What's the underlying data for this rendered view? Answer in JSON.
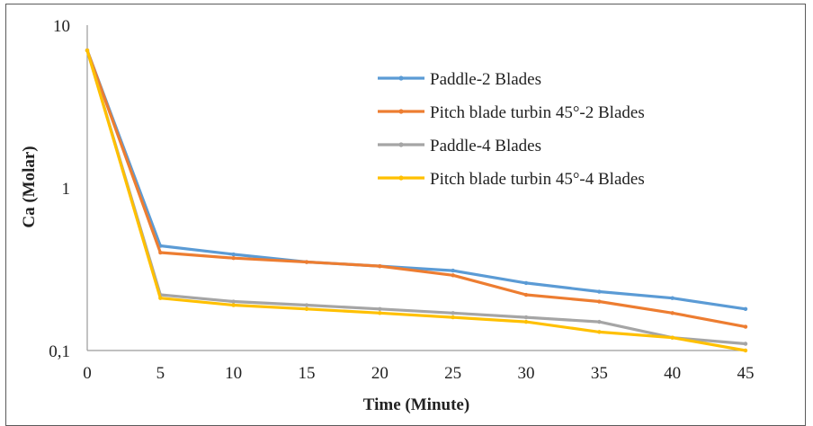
{
  "chart_data": {
    "type": "line",
    "title": "",
    "xlabel": "Time (Minute)",
    "ylabel": "Ca (Molar)",
    "x": [
      0,
      5,
      10,
      15,
      20,
      25,
      30,
      35,
      40,
      45
    ],
    "xlim": [
      0,
      45
    ],
    "ylim": [
      0.1,
      10
    ],
    "yscale": "log",
    "ytick_labels": [
      "10",
      "1",
      "0,1"
    ],
    "ytick_values": [
      10,
      1,
      0.1
    ],
    "xtick_labels": [
      "0",
      "5",
      "10",
      "15",
      "20",
      "25",
      "30",
      "35",
      "40",
      "45"
    ],
    "grid": false,
    "legend_position": "top-right",
    "series": [
      {
        "name": "Paddle-2 Blades",
        "color": "#5b9bd5",
        "values": [
          7.0,
          0.44,
          0.39,
          0.35,
          0.33,
          0.31,
          0.26,
          0.23,
          0.21,
          0.18
        ]
      },
      {
        "name": "Pitch blade turbin 45°-2 Blades",
        "color": "#ed7d31",
        "values": [
          7.0,
          0.4,
          0.37,
          0.35,
          0.33,
          0.29,
          0.22,
          0.2,
          0.17,
          0.14
        ]
      },
      {
        "name": "Paddle-4 Blades",
        "color": "#a5a5a5",
        "values": [
          7.0,
          0.22,
          0.2,
          0.19,
          0.18,
          0.17,
          0.16,
          0.15,
          0.12,
          0.11
        ]
      },
      {
        "name": "Pitch blade turbin 45°-4 Blades",
        "color": "#ffc000",
        "values": [
          7.0,
          0.21,
          0.19,
          0.18,
          0.17,
          0.16,
          0.15,
          0.13,
          0.12,
          0.1
        ]
      }
    ]
  }
}
